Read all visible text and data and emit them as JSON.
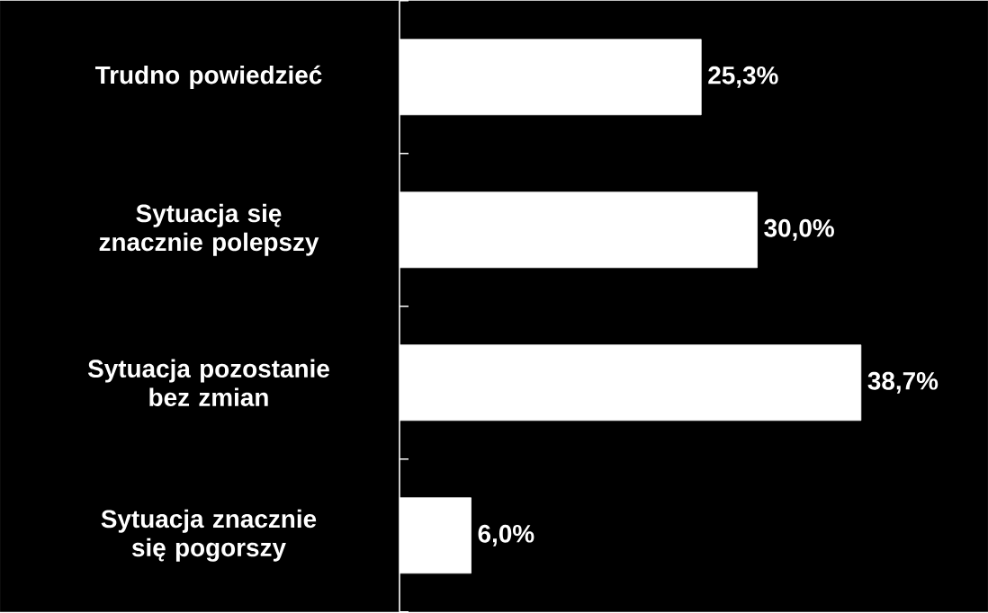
{
  "chart_data": {
    "type": "bar",
    "orientation": "horizontal",
    "categories": [
      "Trudno powiedzieć",
      "Sytuacja się znacznie polepszy",
      "Sytuacja pozostanie  bez zmian",
      "Sytuacja znacznie się pogorszy"
    ],
    "values": [
      25.3,
      30.0,
      38.7,
      6.0
    ],
    "value_labels": [
      "25,3%",
      "30,0%",
      "38,7%",
      "6,0%"
    ],
    "color": "#ffffff"
  }
}
